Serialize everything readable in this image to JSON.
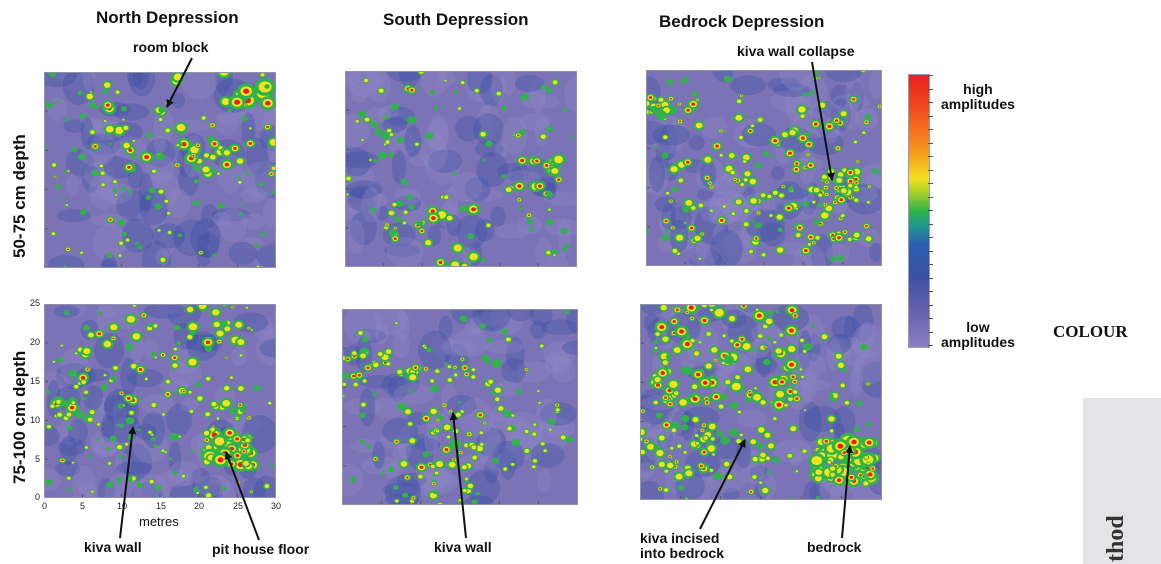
{
  "columns": [
    "North Depression",
    "South Depression",
    "Bedrock Depression"
  ],
  "rows": [
    "50-75 cm depth",
    "75-100 cm depth"
  ],
  "axes": {
    "y_ticks": [
      "25",
      "20",
      "15",
      "10",
      "5",
      "0"
    ],
    "x_ticks": [
      "0",
      "5",
      "10",
      "15",
      "20",
      "25",
      "30"
    ],
    "x_label": "metres"
  },
  "legend": {
    "high": "high\namplitudes",
    "low": "low\namplitudes",
    "side_word": "COLOUR"
  },
  "annotations": {
    "room_block": "room block",
    "kiva_wall_collapse": "kiva wall collapse",
    "kiva_wall_north": "kiva wall",
    "pit_house_floor": "pit house floor",
    "kiva_wall_south": "kiva wall",
    "kiva_incised": "kiva incised\ninto bedrock",
    "bedrock": "bedrock"
  },
  "side_tab_text": "thod",
  "colors": {
    "background_low": "#7b73b6",
    "mid_blue": "#3b4fa4",
    "green": "#2fb34a",
    "yellow": "#f3e21f",
    "red": "#e8201c"
  }
}
